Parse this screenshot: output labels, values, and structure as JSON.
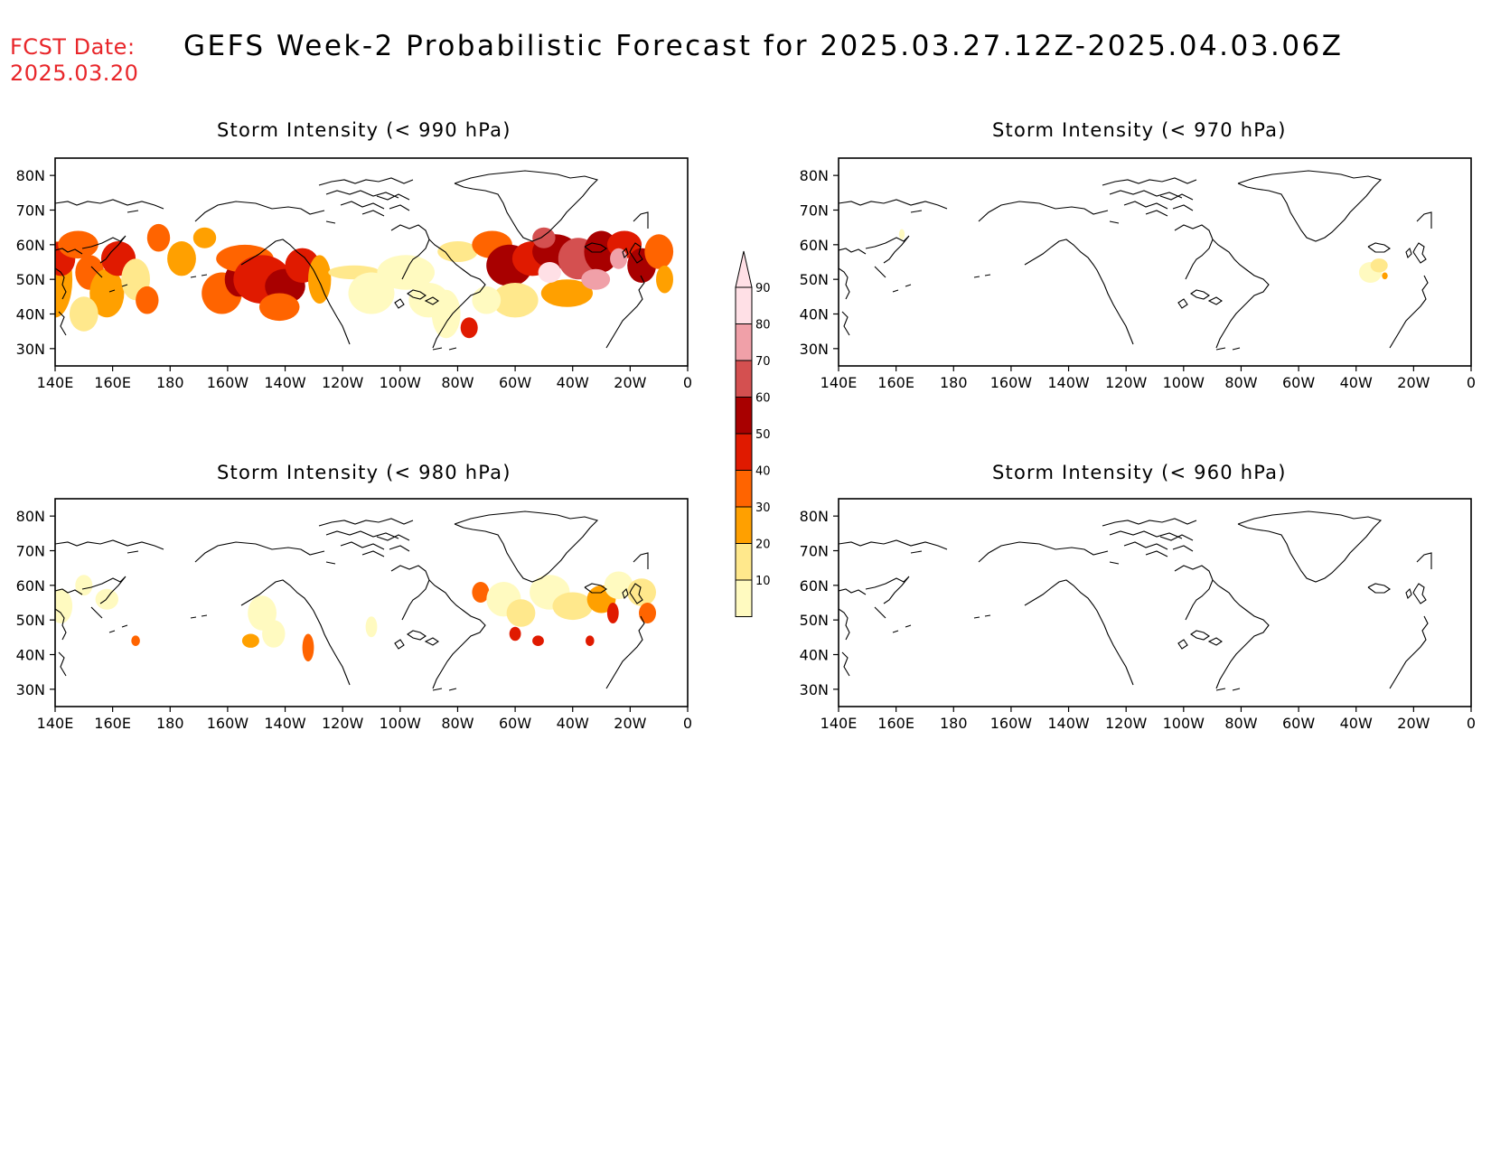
{
  "header": {
    "fcst_label": "FCST Date:",
    "fcst_date": "2025.03.20",
    "title": "GEFS Week-2 Probabilistic Forecast for 2025.03.27.12Z-2025.04.03.06Z"
  },
  "panels": [
    {
      "id": "p990",
      "title": "Storm Intensity (< 990 hPa)"
    },
    {
      "id": "p970",
      "title": "Storm Intensity (< 970 hPa)"
    },
    {
      "id": "p980",
      "title": "Storm Intensity (< 980 hPa)"
    },
    {
      "id": "p960",
      "title": "Storm Intensity (< 960 hPa)"
    }
  ],
  "axes": {
    "lat_labels": [
      "80N",
      "70N",
      "60N",
      "50N",
      "40N",
      "30N"
    ],
    "lon_labels": [
      "140E",
      "160E",
      "180",
      "160W",
      "140W",
      "120W",
      "100W",
      "80W",
      "60W",
      "40W",
      "20W",
      "0"
    ]
  },
  "colorbar": {
    "labels": [
      "10",
      "20",
      "30",
      "40",
      "50",
      "60",
      "70",
      "80",
      "90"
    ],
    "colors": [
      "#fffac0",
      "#ffe88c",
      "#ffa000",
      "#ff6400",
      "#e01a00",
      "#a80000",
      "#d45050",
      "#f0a0a8",
      "#ffe0e6"
    ]
  }
}
